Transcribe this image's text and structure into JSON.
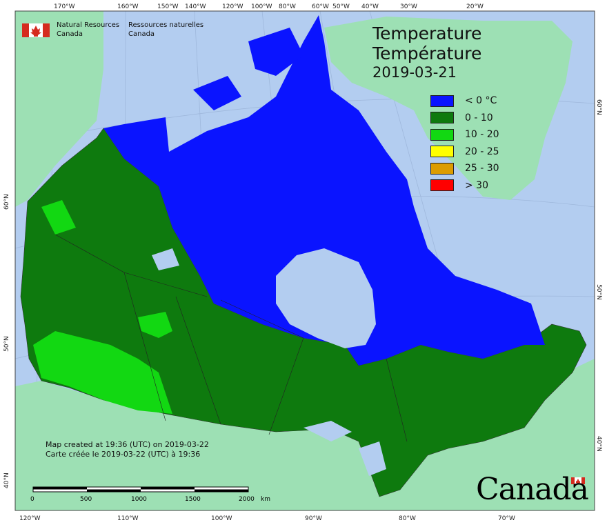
{
  "header": {
    "agency_en_line1": "Natural Resources",
    "agency_en_line2": "Canada",
    "agency_fr_line1": "Ressources naturelles",
    "agency_fr_line2": "Canada"
  },
  "title": {
    "line1": "Temperature",
    "line2": "Température",
    "date": "2019-03-21"
  },
  "legend": [
    {
      "label": "< 0 °C",
      "color": "#0a14ff"
    },
    {
      "label": "0 - 10",
      "color": "#0e7a0e"
    },
    {
      "label": "10 - 20",
      "color": "#12d812"
    },
    {
      "label": "20 - 25",
      "color": "#ffff00"
    },
    {
      "label": "25 - 30",
      "color": "#dc9c00"
    },
    {
      "label": "> 30",
      "color": "#ff0000"
    }
  ],
  "credit": {
    "line1": "Map created at 19:36 (UTC) on 2019-03-22",
    "line2": "Carte créée le 2019-03-22 (UTC) à 19:36"
  },
  "scale_bar": {
    "labels": [
      "0",
      "500",
      "1000",
      "1500",
      "2000"
    ],
    "unit": "km"
  },
  "graticule": {
    "top": [
      "170°W",
      "160°W",
      "150°W",
      "140°W",
      "120°W",
      "100°W",
      "80°W",
      "60°W",
      "50°W",
      "40°W",
      "30°W",
      "20°W"
    ],
    "bottom": [
      "120°W",
      "110°W",
      "100°W",
      "90°W",
      "80°W",
      "70°W"
    ],
    "left": [
      "60°N",
      "50°N",
      "40°N"
    ],
    "right": [
      "60°N",
      "50°N",
      "40°N"
    ]
  },
  "wordmark": "Canada",
  "colors": {
    "ocean": "#b3cdf0",
    "land_other": "#9de0b4",
    "border": "#333333"
  }
}
